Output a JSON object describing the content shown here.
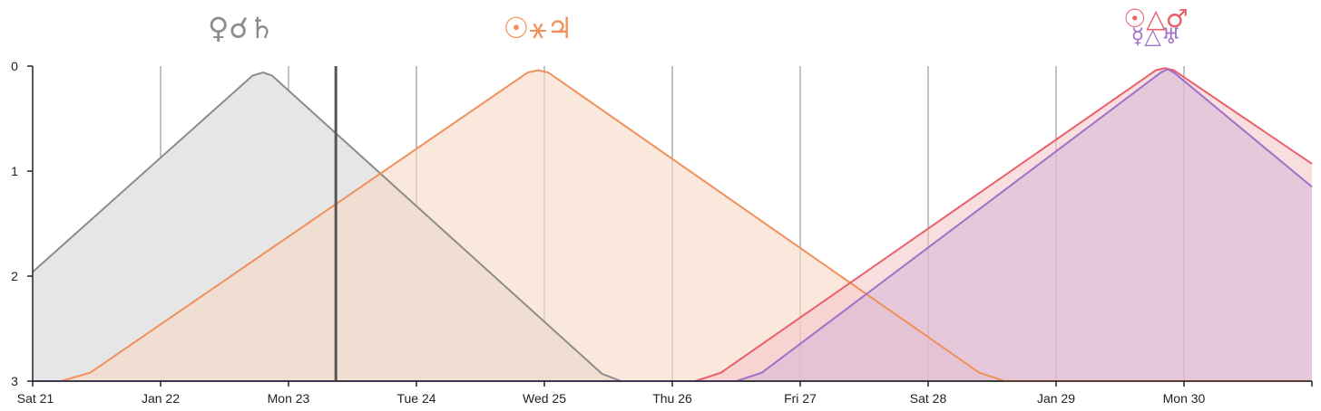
{
  "chart_data": {
    "type": "area",
    "title": "",
    "xlabel": "",
    "ylabel": "",
    "x_ticks": [
      "Sat 21",
      "Jan 22",
      "Mon 23",
      "Tue 24",
      "Wed 25",
      "Thu 26",
      "Fri 27",
      "Sat 28",
      "Jan 29",
      "Mon 30"
    ],
    "x_range": [
      0,
      10
    ],
    "y_ticks": [
      "0",
      "1",
      "2",
      "3"
    ],
    "y_range": [
      0,
      3
    ],
    "y_inverted": true,
    "grid": "vertical",
    "current_time_marker": 2.37,
    "series": [
      {
        "color": "#8c8c8c",
        "fill": "#e6e6e6",
        "fill_opacity": 1,
        "points": [
          [
            0,
            1.96
          ],
          [
            1.72,
            0.09
          ],
          [
            1.8,
            0.06
          ],
          [
            1.87,
            0.09
          ],
          [
            4.45,
            2.93
          ],
          [
            4.6,
            3.0
          ],
          [
            10,
            3.0
          ]
        ]
      },
      {
        "color": "#f0905a",
        "fill": "#f7d8c6",
        "fill_opacity": 0.6,
        "points": [
          [
            0,
            3.0
          ],
          [
            0.22,
            3.0
          ],
          [
            0.45,
            2.92
          ],
          [
            3.87,
            0.06
          ],
          [
            3.95,
            0.04
          ],
          [
            4.03,
            0.06
          ],
          [
            7.4,
            2.92
          ],
          [
            7.6,
            3.0
          ],
          [
            10,
            3.0
          ]
        ]
      },
      {
        "color": "#e8606a",
        "fill": "#f4c2c6",
        "fill_opacity": 0.55,
        "points": [
          [
            0,
            3.0
          ],
          [
            5.18,
            3.0
          ],
          [
            5.38,
            2.92
          ],
          [
            8.78,
            0.04
          ],
          [
            8.85,
            0.02
          ],
          [
            8.92,
            0.04
          ],
          [
            10,
            0.93
          ]
        ]
      },
      {
        "color": "#a070c8",
        "fill": "#d7b9d6",
        "fill_opacity": 0.6,
        "points": [
          [
            0,
            3.0
          ],
          [
            5.5,
            3.0
          ],
          [
            5.7,
            2.92
          ],
          [
            8.82,
            0.06
          ],
          [
            8.87,
            0.03
          ],
          [
            8.92,
            0.06
          ],
          [
            10,
            1.15
          ]
        ]
      }
    ],
    "annotations": [
      {
        "text": "♀☌♄",
        "x": 1.63,
        "color": "#8c8c8c",
        "row": "single"
      },
      {
        "text": "☉⚹♃",
        "x": 3.95,
        "color": "#f0905a",
        "row": "single"
      },
      {
        "text": "☉△♂",
        "x": 8.78,
        "color": "#e8606a",
        "row": "upper"
      },
      {
        "text": "☿△♅",
        "x": 8.78,
        "color": "#a070c8",
        "row": "lower"
      }
    ]
  }
}
